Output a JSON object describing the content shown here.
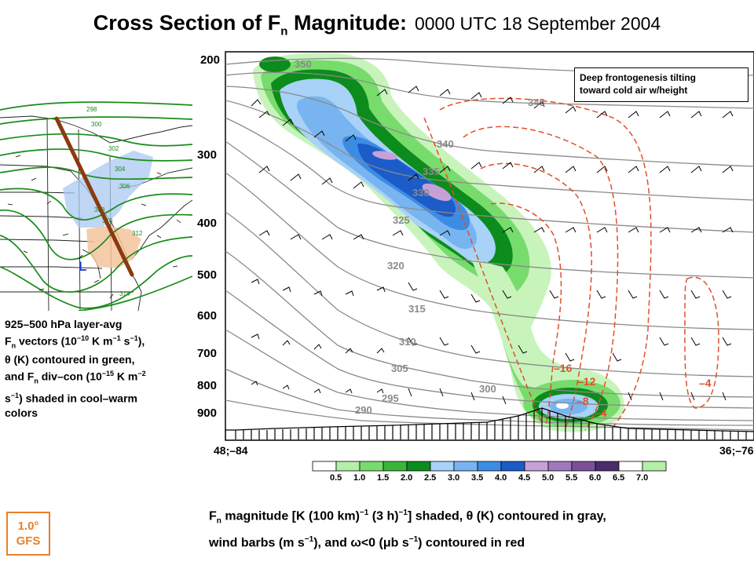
{
  "title": {
    "main": "Cross Section of F",
    "main_sub": "n",
    "main_tail": " Magnitude:",
    "date": "0000 UTC 18 September 2004"
  },
  "annotation": {
    "line1": "Deep frontogenesis tilting",
    "line2": "toward cold air w/height"
  },
  "pressure_axis": {
    "labels": [
      "200",
      "300",
      "400",
      "500",
      "600",
      "700",
      "800",
      "900"
    ],
    "values": [
      200,
      300,
      400,
      500,
      600,
      700,
      800,
      900
    ],
    "range": [
      200,
      1000
    ]
  },
  "endpoints": {
    "left": "48;–84",
    "right": "36;–76"
  },
  "theta_labels": [
    "350",
    "345",
    "340",
    "335",
    "330",
    "325",
    "320",
    "315",
    "310",
    "305",
    "300",
    "295",
    "290"
  ],
  "omega_labels": [
    "–16",
    "–12",
    "–8",
    "–4",
    "–4"
  ],
  "inset_theta_labels": [
    "298",
    "300",
    "302",
    "304",
    "306",
    "308",
    "310",
    "312",
    "314"
  ],
  "inset_low_label": "L",
  "colorbar": {
    "ticks": [
      "0.5",
      "1.0",
      "1.5",
      "2.0",
      "2.5",
      "3.0",
      "3.5",
      "4.0",
      "4.5",
      "5.0",
      "5.5",
      "6.0",
      "6.5",
      "7.0"
    ],
    "colors": [
      "#ffffff",
      "#b4f0a8",
      "#78dc6c",
      "#3cb43c",
      "#0c8c1c",
      "#a8d2f8",
      "#78b4f0",
      "#3c8ce4",
      "#1c5cc8",
      "#c8a0d8",
      "#a078bc",
      "#7c5098",
      "#4c2c6c",
      "#ffffff",
      "#b4f0a8"
    ]
  },
  "inset_caption": {
    "p1": "925–500 hPa layer-avg",
    "p2a": "F",
    "p2b": "n",
    "p2c": " vectors (10",
    "p2d": "−10",
    "p2e": " K m",
    "p2f": "−1",
    "p2g": " s",
    "p2h": "−1",
    "p2i": "),",
    "p3": "θ (K) contoured in green,",
    "p4a": "and F",
    "p4b": "n",
    "p4c": " div–con (10",
    "p4d": "−15",
    "p4e": " K m",
    "p4f": "−2",
    "p5a": "s",
    "p5b": "−1",
    "p5c": ") shaded in cool–warm",
    "p6": "colors"
  },
  "bottom_caption": {
    "a": "F",
    "b": "n",
    "c": " magnitude [K (100 km)",
    "d": "−1",
    "e": " (3 h)",
    "f": "−1",
    "g": "] shaded, θ (K) contoured in gray,",
    "h": "wind barbs (m s",
    "i": "−1",
    "j": "), and ω<0 (μb s",
    "k": "−1",
    "l": ") contoured in red"
  },
  "badge": {
    "line1": "1.0°",
    "line2": "GFS"
  },
  "colors": {
    "frontal_line": "#8b3a0f",
    "theta_inset": "#1a8c1a",
    "omega": "#e0502a",
    "theta_main": "#8a8a8a",
    "badge": "#e8802a",
    "low": "#1f3fd0"
  }
}
